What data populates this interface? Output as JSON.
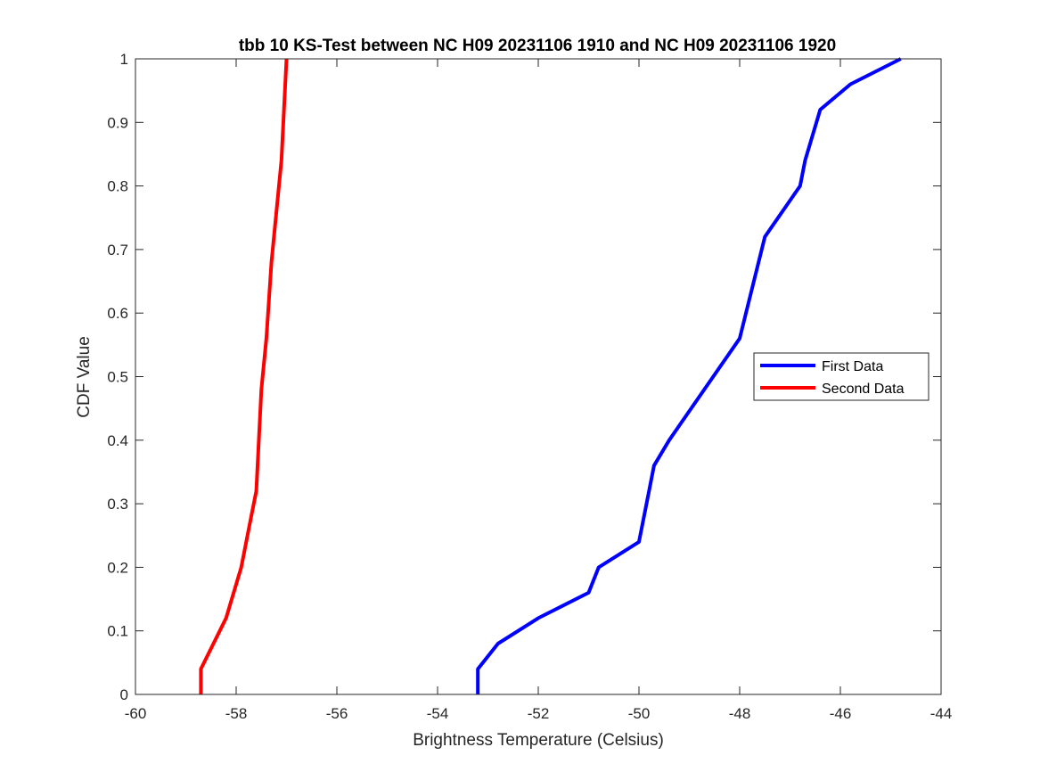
{
  "chart_data": {
    "type": "line",
    "title": "tbb 10 KS-Test between NC H09 20231106 1910 and NC H09 20231106 1920",
    "xlabel": "Brightness Temperature (Celsius)",
    "ylabel": "CDF Value",
    "xlim": [
      -60,
      -44
    ],
    "ylim": [
      0,
      1
    ],
    "xticks": [
      -60,
      -58,
      -56,
      -54,
      -52,
      -50,
      -48,
      -46,
      -44
    ],
    "yticks": [
      0,
      0.1,
      0.2,
      0.3,
      0.4,
      0.5,
      0.6,
      0.7,
      0.8,
      0.9,
      1
    ],
    "xtick_labels": [
      "-60",
      "-58",
      "-56",
      "-54",
      "-52",
      "-50",
      "-48",
      "-46",
      "-44"
    ],
    "ytick_labels": [
      "0",
      "0.1",
      "0.2",
      "0.3",
      "0.4",
      "0.5",
      "0.6",
      "0.7",
      "0.8",
      "0.9",
      "1"
    ],
    "grid": false,
    "legend_position": "right",
    "series": [
      {
        "name": "First Data",
        "color": "#0000ff",
        "x": [
          -53.2,
          -53.2,
          -53.2,
          -52.8,
          -52.0,
          -51.0,
          -50.8,
          -50.0,
          -49.8,
          -49.7,
          -49.4,
          -48.0,
          -47.5,
          -46.8,
          -46.7,
          -46.4,
          -45.8,
          -44.8
        ],
        "y": [
          0,
          0.02,
          0.04,
          0.08,
          0.12,
          0.16,
          0.2,
          0.24,
          0.32,
          0.36,
          0.4,
          0.56,
          0.72,
          0.8,
          0.84,
          0.92,
          0.96,
          1.0
        ]
      },
      {
        "name": "Second Data",
        "color": "#ff0000",
        "x": [
          -58.7,
          -58.7,
          -58.7,
          -58.2,
          -57.9,
          -57.7,
          -57.6,
          -57.5,
          -57.4,
          -57.3,
          -57.1,
          -57.0
        ],
        "y": [
          0,
          0.02,
          0.04,
          0.12,
          0.2,
          0.28,
          0.32,
          0.48,
          0.56,
          0.68,
          0.84,
          1.0
        ]
      }
    ]
  }
}
